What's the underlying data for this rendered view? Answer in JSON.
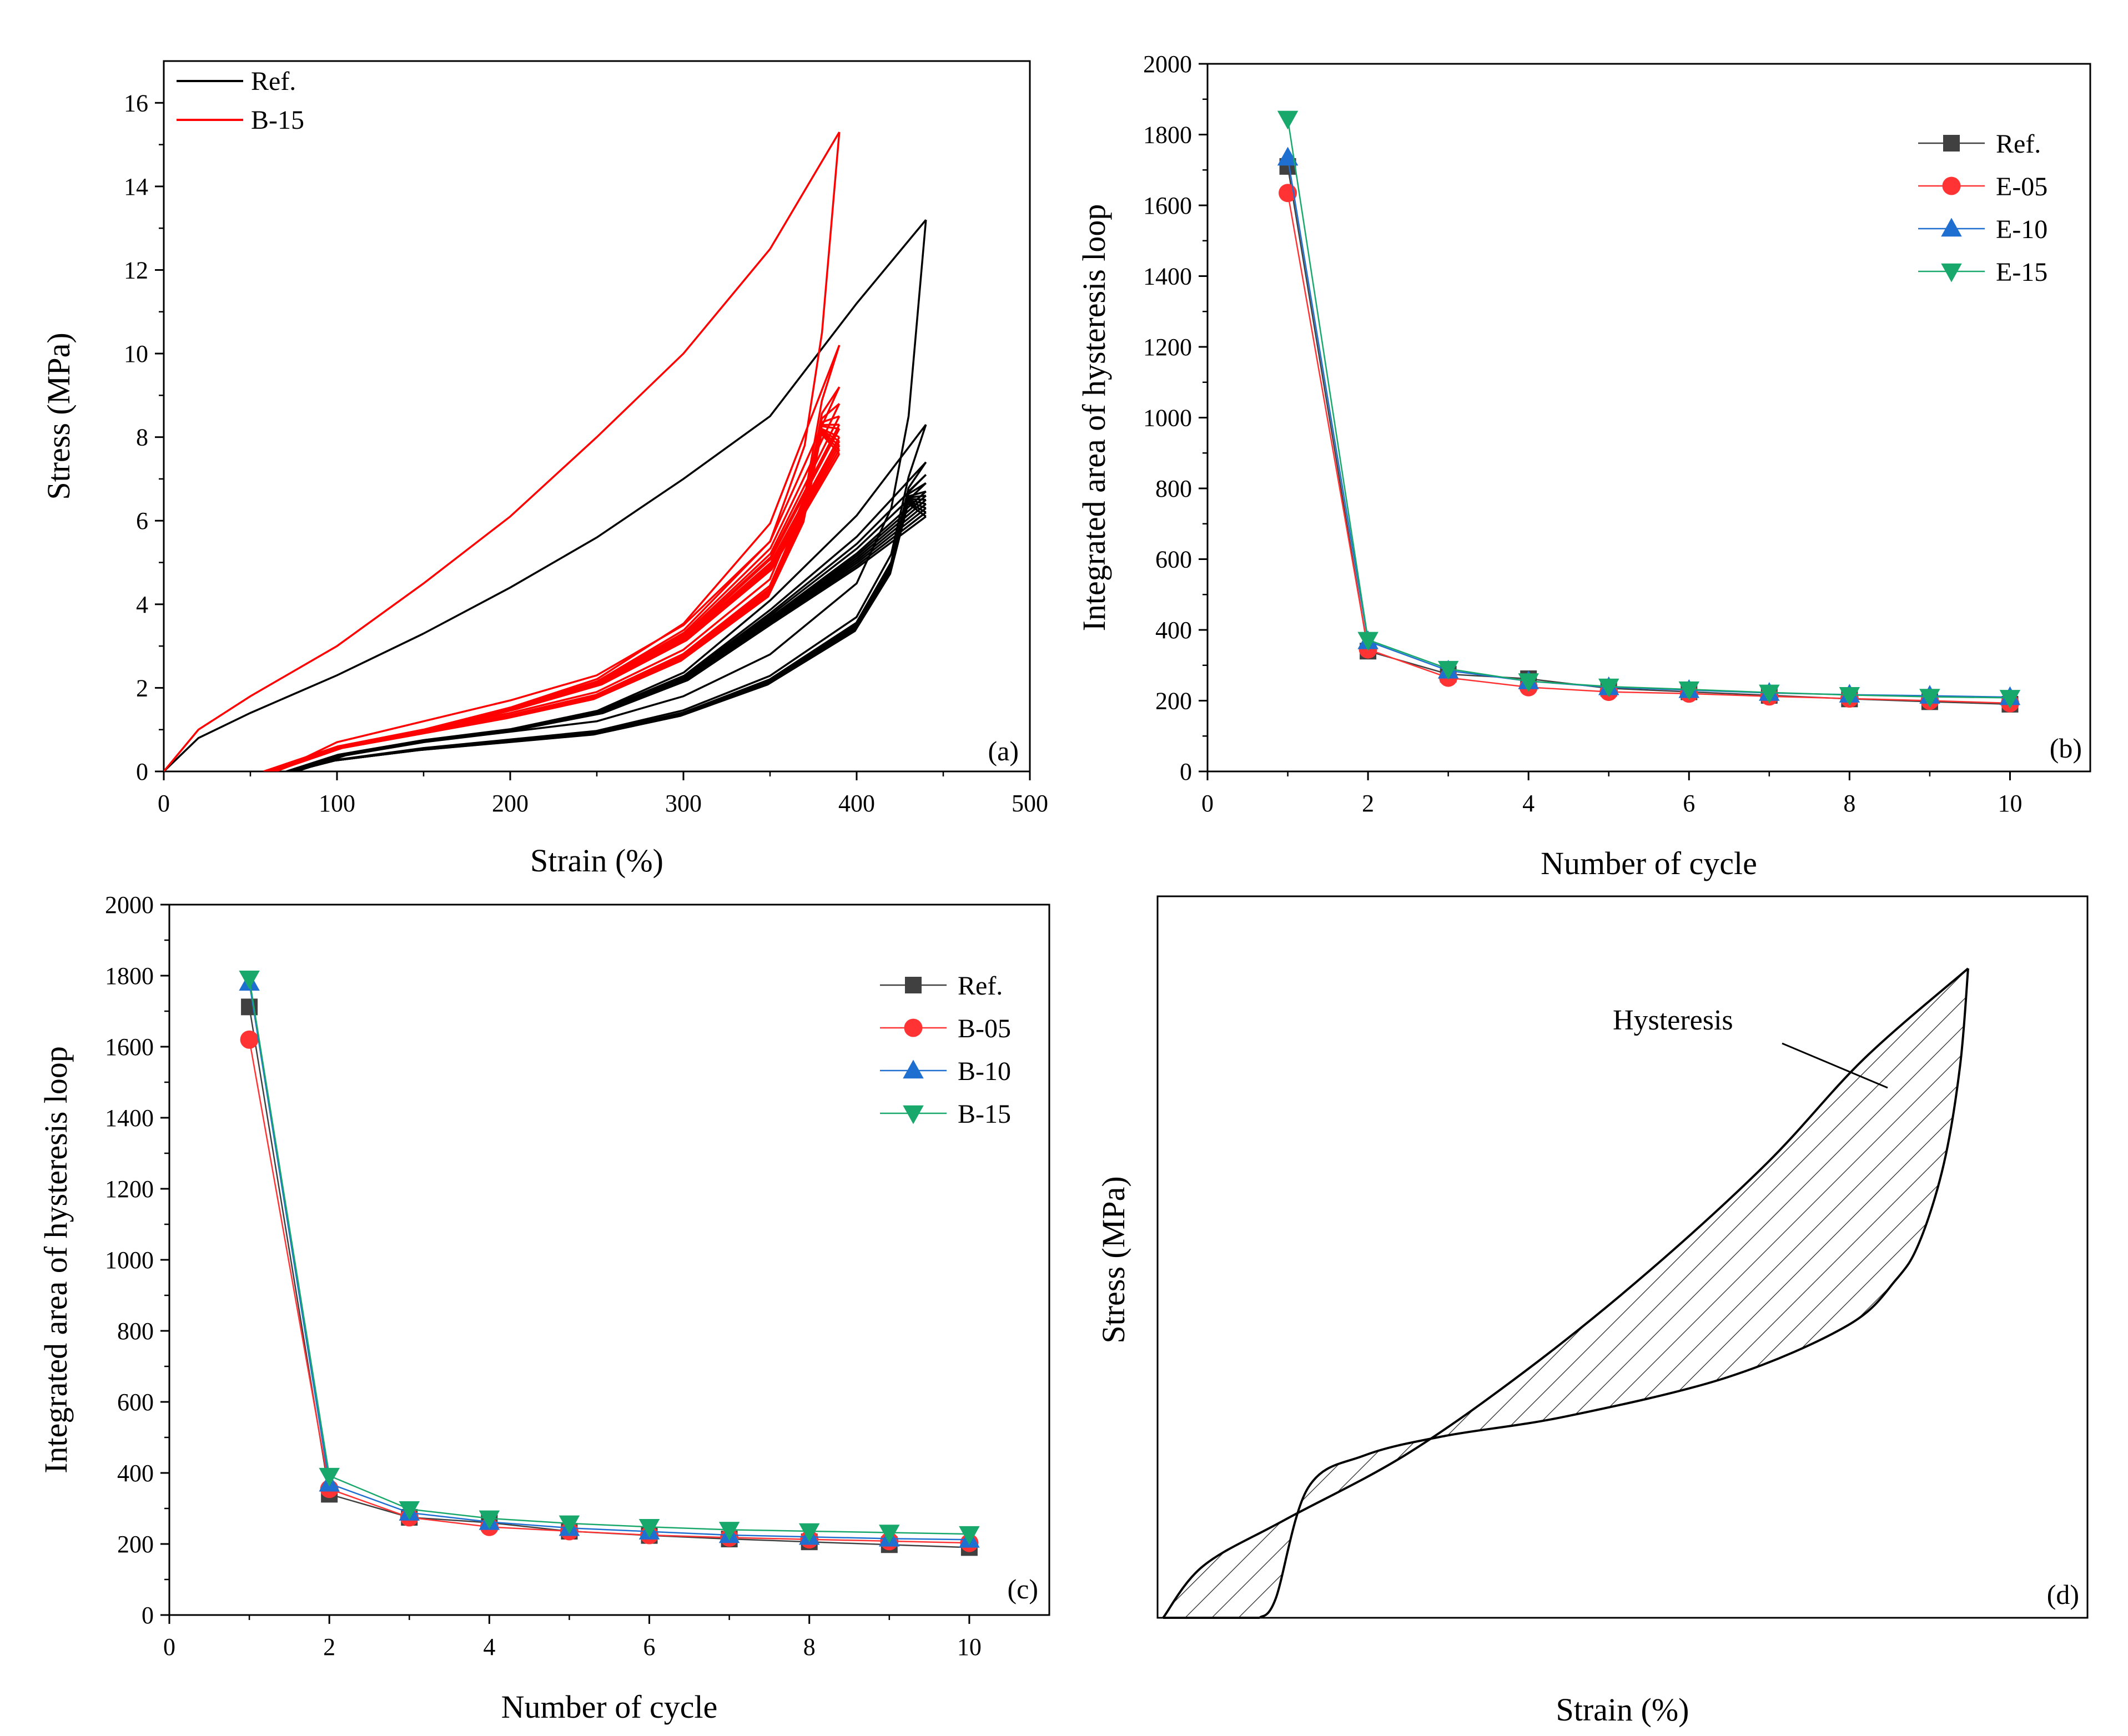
{
  "chart_data": [
    {
      "panel": "a",
      "type": "line",
      "title": "",
      "xlabel": "Strain (%)",
      "ylabel": "Stress (MPa)",
      "xlim": [
        0,
        500
      ],
      "ylim": [
        0,
        17
      ],
      "xticks": [
        0,
        100,
        200,
        300,
        400,
        500
      ],
      "yticks": [
        0,
        2,
        4,
        6,
        8,
        10,
        12,
        14,
        16
      ],
      "panel_label": "(a)",
      "grid": false,
      "legend_position": "top-left",
      "series": [
        {
          "name": "Ref.",
          "color": "#000000",
          "peak_strain": 440,
          "cycle_peaks": [
            13.2,
            8.3,
            7.4,
            7.1,
            6.9,
            6.7,
            6.6,
            6.5,
            6.4,
            6.3,
            6.2,
            6.1
          ],
          "first_load": [
            [
              0,
              0
            ],
            [
              20,
              0.8
            ],
            [
              50,
              1.4
            ],
            [
              100,
              2.3
            ],
            [
              150,
              3.3
            ],
            [
              200,
              4.4
            ],
            [
              250,
              5.6
            ],
            [
              300,
              7.0
            ],
            [
              350,
              8.5
            ],
            [
              400,
              11.2
            ],
            [
              440,
              13.2
            ]
          ],
          "unload": [
            [
              440,
              13.2
            ],
            [
              430,
              8.5
            ],
            [
              420,
              6.3
            ],
            [
              400,
              4.5
            ],
            [
              350,
              2.8
            ],
            [
              300,
              1.8
            ],
            [
              250,
              1.2
            ],
            [
              200,
              0.95
            ],
            [
              150,
              0.7
            ],
            [
              100,
              0.35
            ],
            [
              75,
              0
            ]
          ],
          "reload": [
            [
              70,
              0
            ],
            [
              100,
              0.4
            ],
            [
              150,
              0.75
            ],
            [
              200,
              1.0
            ],
            [
              250,
              1.4
            ],
            [
              300,
              2.2
            ],
            [
              350,
              3.6
            ],
            [
              400,
              5.0
            ],
            [
              440,
              6.3
            ]
          ]
        },
        {
          "name": "B-15",
          "color": "#ff0000",
          "peak_strain": 390,
          "cycle_peaks": [
            15.3,
            10.2,
            9.2,
            8.8,
            8.5,
            8.3,
            8.2,
            8.0,
            7.9,
            7.8,
            7.7,
            7.6
          ],
          "first_load": [
            [
              0,
              0
            ],
            [
              20,
              1.0
            ],
            [
              50,
              1.8
            ],
            [
              100,
              3.0
            ],
            [
              150,
              4.5
            ],
            [
              200,
              6.1
            ],
            [
              250,
              8.0
            ],
            [
              300,
              10.0
            ],
            [
              350,
              12.5
            ],
            [
              390,
              15.3
            ]
          ],
          "unload": [
            [
              390,
              15.3
            ],
            [
              380,
              10.5
            ],
            [
              370,
              7.8
            ],
            [
              350,
              5.5
            ],
            [
              300,
              3.5
            ],
            [
              250,
              2.3
            ],
            [
              200,
              1.7
            ],
            [
              150,
              1.2
            ],
            [
              100,
              0.7
            ],
            [
              65,
              0
            ]
          ],
          "reload": [
            [
              57,
              0
            ],
            [
              100,
              0.6
            ],
            [
              150,
              1.0
            ],
            [
              200,
              1.5
            ],
            [
              250,
              2.1
            ],
            [
              300,
              3.2
            ],
            [
              350,
              5.0
            ],
            [
              390,
              8.0
            ]
          ]
        }
      ]
    },
    {
      "panel": "b",
      "type": "line",
      "title": "",
      "xlabel": "Number of cycle",
      "ylabel": "Integrated area of hysteresis loop",
      "xlim": [
        0,
        11
      ],
      "ylim": [
        0,
        2000
      ],
      "xticks": [
        0,
        2,
        4,
        6,
        8,
        10
      ],
      "yticks": [
        0,
        200,
        400,
        600,
        800,
        1000,
        1200,
        1400,
        1600,
        1800,
        2000
      ],
      "panel_label": "(b)",
      "grid": false,
      "legend_position": "top-right",
      "x": [
        1,
        2,
        3,
        4,
        5,
        6,
        7,
        8,
        9,
        10
      ],
      "series": [
        {
          "name": "Ref.",
          "color": "#404040",
          "marker": "square",
          "values": [
            1710,
            340,
            275,
            262,
            235,
            225,
            215,
            205,
            197,
            190
          ]
        },
        {
          "name": "E-05",
          "color": "#ff3333",
          "marker": "circle",
          "values": [
            1635,
            345,
            265,
            238,
            225,
            220,
            212,
            206,
            200,
            193
          ]
        },
        {
          "name": "E-10",
          "color": "#1f6fd0",
          "marker": "triangle-up",
          "values": [
            1735,
            368,
            285,
            255,
            238,
            230,
            222,
            217,
            214,
            210
          ]
        },
        {
          "name": "E-15",
          "color": "#19a86b",
          "marker": "triangle-down",
          "values": [
            1845,
            372,
            290,
            255,
            240,
            232,
            223,
            216,
            211,
            208
          ]
        }
      ]
    },
    {
      "panel": "c",
      "type": "line",
      "title": "",
      "xlabel": "Number of cycle",
      "ylabel": "Integrated area of hysteresis loop",
      "xlim": [
        0,
        11
      ],
      "ylim": [
        0,
        2000
      ],
      "xticks": [
        0,
        2,
        4,
        6,
        8,
        10
      ],
      "yticks": [
        0,
        200,
        400,
        600,
        800,
        1000,
        1200,
        1400,
        1600,
        1800,
        2000
      ],
      "panel_label": "(c)",
      "grid": false,
      "legend_position": "top-right",
      "x": [
        1,
        2,
        3,
        4,
        5,
        6,
        7,
        8,
        9,
        10
      ],
      "series": [
        {
          "name": "Ref.",
          "color": "#404040",
          "marker": "square",
          "values": [
            1712,
            340,
            275,
            260,
            236,
            224,
            214,
            206,
            198,
            190
          ]
        },
        {
          "name": "B-05",
          "color": "#ff3333",
          "marker": "circle",
          "values": [
            1620,
            355,
            275,
            248,
            236,
            225,
            218,
            213,
            208,
            203
          ]
        },
        {
          "name": "B-10",
          "color": "#1f6fd0",
          "marker": "triangle-up",
          "values": [
            1780,
            370,
            288,
            262,
            245,
            235,
            225,
            220,
            215,
            212
          ]
        },
        {
          "name": "B-15",
          "color": "#19a86b",
          "marker": "triangle-down",
          "values": [
            1792,
            392,
            298,
            272,
            258,
            248,
            240,
            236,
            232,
            228
          ]
        }
      ]
    },
    {
      "panel": "d",
      "type": "line",
      "title": "",
      "xlabel": "Strain (%)",
      "ylabel": "Stress (MPa)",
      "xlim": [
        0,
        100
      ],
      "ylim": [
        0,
        100
      ],
      "xticks": [],
      "yticks": [],
      "panel_label": "(d)",
      "annotation": "Hysteresis",
      "grid": false,
      "schematic": true,
      "loading": [
        [
          0,
          0
        ],
        [
          5,
          8
        ],
        [
          15,
          15
        ],
        [
          30,
          25
        ],
        [
          45,
          38
        ],
        [
          60,
          53
        ],
        [
          75,
          70
        ],
        [
          87,
          86
        ],
        [
          100,
          100
        ]
      ],
      "unloading": [
        [
          100,
          100
        ],
        [
          99,
          85
        ],
        [
          97,
          70
        ],
        [
          94,
          58
        ],
        [
          91,
          52
        ],
        [
          85,
          45
        ],
        [
          70,
          37
        ],
        [
          50,
          31
        ],
        [
          35,
          28
        ],
        [
          25,
          25
        ],
        [
          18,
          20
        ],
        [
          14,
          3
        ],
        [
          12,
          0
        ]
      ]
    }
  ]
}
